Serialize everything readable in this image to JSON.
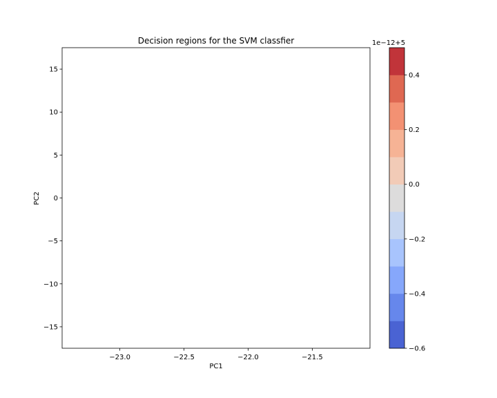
{
  "chart_data": {
    "type": "heatmap",
    "title": "Decision regions for the SVM classfier",
    "xlabel": "PC1",
    "ylabel": "PC2",
    "xlim": [
      -23.45,
      -21.05
    ],
    "ylim": [
      -17.5,
      17.5
    ],
    "x_ticks": [
      {
        "value": -23.0,
        "label": "−23.0"
      },
      {
        "value": -22.5,
        "label": "−22.5"
      },
      {
        "value": -22.0,
        "label": "−22.0"
      },
      {
        "value": -21.5,
        "label": "−21.5"
      }
    ],
    "y_ticks": [
      {
        "value": 15,
        "label": "15"
      },
      {
        "value": 10,
        "label": "10"
      },
      {
        "value": 5,
        "label": "5"
      },
      {
        "value": 0,
        "label": "0"
      },
      {
        "value": -5,
        "label": "−5"
      },
      {
        "value": -10,
        "label": "−10"
      },
      {
        "value": -15,
        "label": "−15"
      }
    ],
    "colorbar": {
      "offset_label": "1e−12+5",
      "range": [
        -0.6,
        0.5
      ],
      "levels": [
        {
          "from": -0.6,
          "to": -0.5,
          "color": "#4a63d3"
        },
        {
          "from": -0.5,
          "to": -0.4,
          "color": "#6687ec"
        },
        {
          "from": -0.4,
          "to": -0.3,
          "color": "#86a7fb"
        },
        {
          "from": -0.3,
          "to": -0.2,
          "color": "#a8c4fd"
        },
        {
          "from": -0.2,
          "to": -0.1,
          "color": "#c6d6f1"
        },
        {
          "from": -0.1,
          "to": 0.0,
          "color": "#dddcdc"
        },
        {
          "from": 0.0,
          "to": 0.1,
          "color": "#f2cbb7"
        },
        {
          "from": 0.1,
          "to": 0.2,
          "color": "#f6b395"
        },
        {
          "from": 0.2,
          "to": 0.3,
          "color": "#f39173"
        },
        {
          "from": 0.3,
          "to": 0.4,
          "color": "#df6852"
        },
        {
          "from": 0.4,
          "to": 0.5,
          "color": "#c1343a"
        }
      ],
      "ticks": [
        {
          "value": 0.4,
          "label": "0.4"
        },
        {
          "value": 0.2,
          "label": "0.2"
        },
        {
          "value": 0.0,
          "label": "0.0"
        },
        {
          "value": -0.2,
          "label": "−0.2"
        },
        {
          "value": -0.4,
          "label": "−0.4"
        },
        {
          "value": -0.6,
          "label": "−0.6"
        }
      ]
    },
    "grid": false
  }
}
